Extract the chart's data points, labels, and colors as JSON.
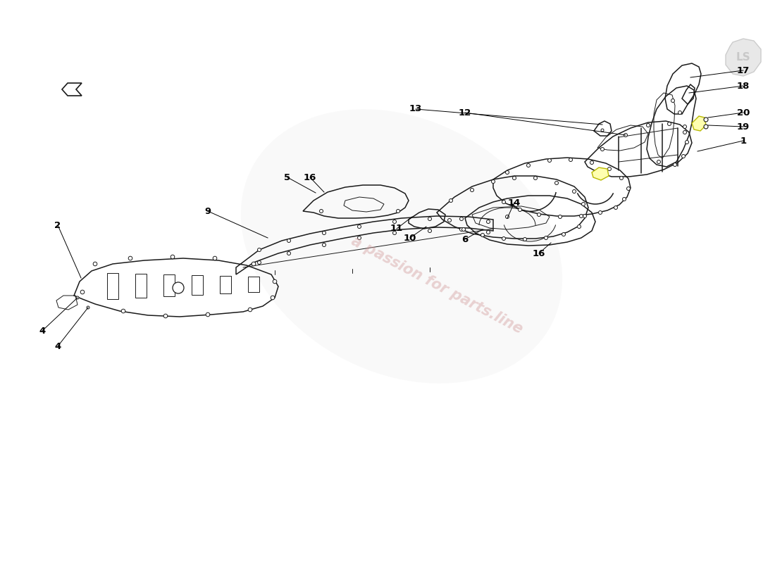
{
  "background_color": "#ffffff",
  "line_color": "#1a1a1a",
  "label_color": "#000000",
  "watermark_text": "a passion for parts.line",
  "watermark_color": "#d4a0a0",
  "watermark_alpha": 0.45,
  "lw_main": 1.1,
  "lw_thin": 0.7,
  "lw_label": 0.7,
  "fontsize_label": 9.5
}
